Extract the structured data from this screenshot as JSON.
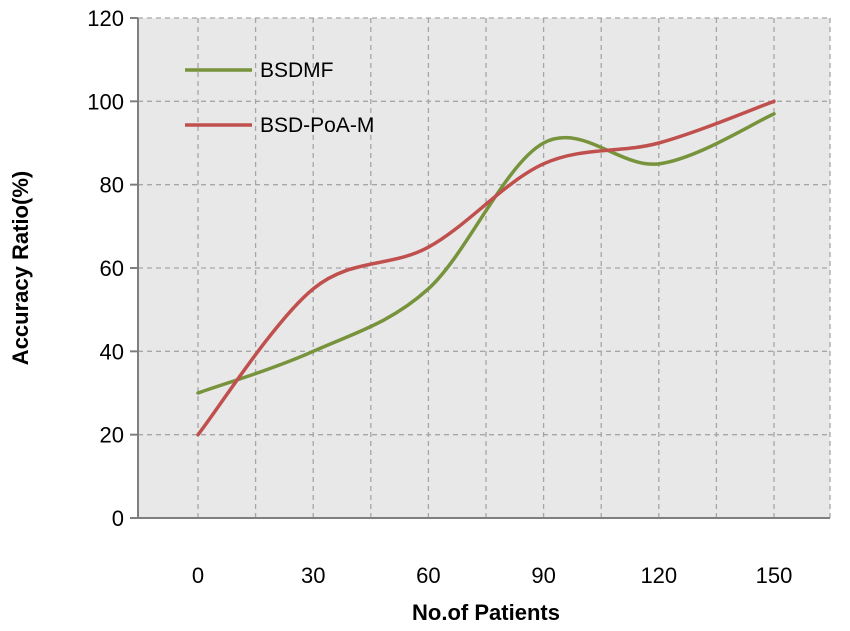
{
  "chart_data": {
    "type": "line",
    "x": [
      0,
      30,
      60,
      90,
      120,
      150
    ],
    "series": [
      {
        "name": "BSDMF",
        "color": "#77933c",
        "values": [
          30,
          40,
          55,
          90,
          85,
          97
        ]
      },
      {
        "name": "BSD-PoA-M",
        "color": "#c0504d",
        "values": [
          20,
          55,
          65,
          85,
          90,
          100
        ]
      }
    ],
    "xlabel": "No.of Patients",
    "ylabel": "Accuracy Ratio(%)",
    "xticks": [
      "0",
      "30",
      "60",
      "90",
      "120",
      "150"
    ],
    "yticks": [
      "0",
      "20",
      "40",
      "60",
      "80",
      "100",
      "120"
    ],
    "ylim": [
      0,
      120
    ],
    "grid": true,
    "legend_position": "top-left",
    "plot_background": "#e8e8e8"
  }
}
